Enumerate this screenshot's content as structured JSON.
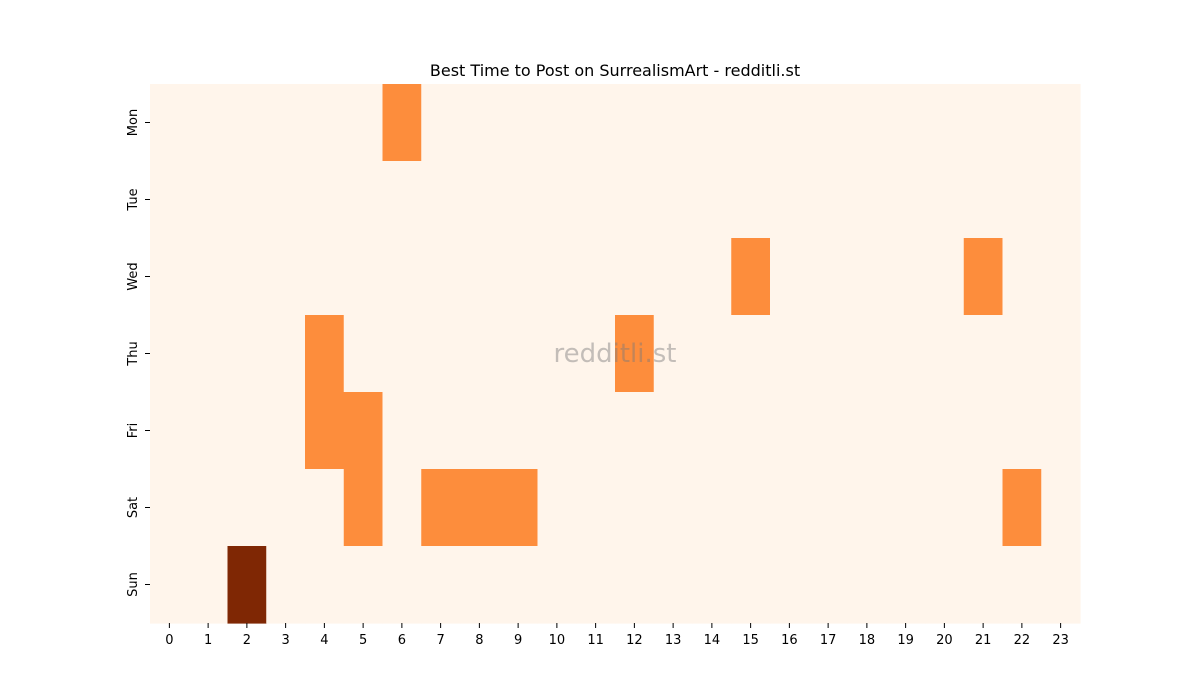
{
  "chart_data": {
    "type": "heatmap",
    "title": "Best Time to Post on SurrealismArt - redditli.st",
    "xlabel": "",
    "ylabel": "",
    "x_categories": [
      "0",
      "1",
      "2",
      "3",
      "4",
      "5",
      "6",
      "7",
      "8",
      "9",
      "10",
      "11",
      "12",
      "13",
      "14",
      "15",
      "16",
      "17",
      "18",
      "19",
      "20",
      "21",
      "22",
      "23"
    ],
    "y_categories": [
      "Mon",
      "Tue",
      "Wed",
      "Thu",
      "Fri",
      "Sat",
      "Sun"
    ],
    "colormap": "Oranges",
    "colors": {
      "low": "#fff5eb",
      "mid": "#fd8d3c",
      "high": "#7f2704"
    },
    "values": [
      [
        0,
        0,
        0,
        0,
        0,
        0,
        1,
        0,
        0,
        0,
        0,
        0,
        0,
        0,
        0,
        0,
        0,
        0,
        0,
        0,
        0,
        0,
        0,
        0
      ],
      [
        0,
        0,
        0,
        0,
        0,
        0,
        0,
        0,
        0,
        0,
        0,
        0,
        0,
        0,
        0,
        0,
        0,
        0,
        0,
        0,
        0,
        0,
        0,
        0
      ],
      [
        0,
        0,
        0,
        0,
        0,
        0,
        0,
        0,
        0,
        0,
        0,
        0,
        0,
        0,
        0,
        1,
        0,
        0,
        0,
        0,
        0,
        1,
        0,
        0
      ],
      [
        0,
        0,
        0,
        0,
        1,
        0,
        0,
        0,
        0,
        0,
        0,
        0,
        1,
        0,
        0,
        0,
        0,
        0,
        0,
        0,
        0,
        0,
        0,
        0
      ],
      [
        0,
        0,
        0,
        0,
        1,
        1,
        0,
        0,
        0,
        0,
        0,
        0,
        0,
        0,
        0,
        0,
        0,
        0,
        0,
        0,
        0,
        0,
        0,
        0
      ],
      [
        0,
        0,
        0,
        0,
        0,
        1,
        0,
        1,
        1,
        1,
        0,
        0,
        0,
        0,
        0,
        0,
        0,
        0,
        0,
        0,
        0,
        0,
        1,
        0
      ],
      [
        0,
        0,
        2,
        0,
        0,
        0,
        0,
        0,
        0,
        0,
        0,
        0,
        0,
        0,
        0,
        0,
        0,
        0,
        0,
        0,
        0,
        0,
        0,
        0
      ]
    ],
    "vmin": 0,
    "vmax": 2,
    "watermark": "redditli.st",
    "colorbar": false,
    "grid": false
  }
}
